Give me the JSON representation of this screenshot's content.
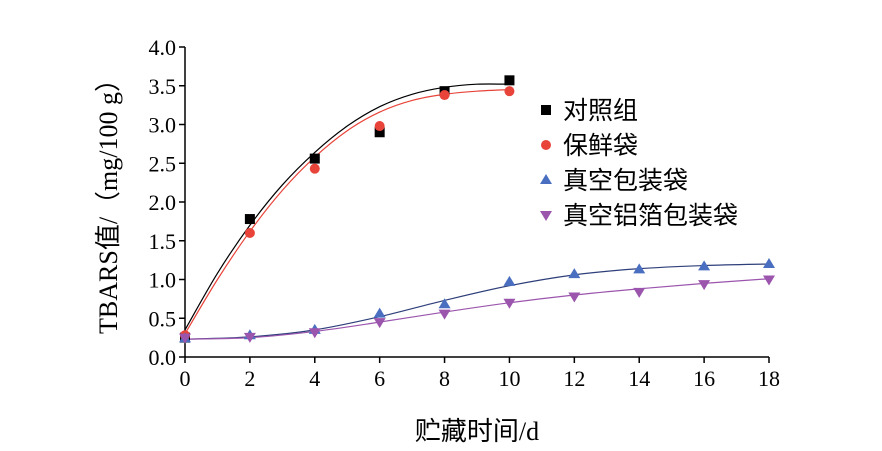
{
  "chart_data": {
    "type": "scatter",
    "xlabel": "贮藏时间/d",
    "ylabel": "TBARS值/（mg/100 g）",
    "xlim": [
      0,
      18
    ],
    "ylim": [
      0,
      4.0
    ],
    "x_ticks": [
      "0",
      "2",
      "4",
      "6",
      "8",
      "10",
      "12",
      "14",
      "16",
      "18"
    ],
    "y_ticks": [
      "0.0",
      "0.5",
      "1.0",
      "1.5",
      "2.0",
      "2.5",
      "3.0",
      "3.5",
      "4.0"
    ],
    "grid": false,
    "legend_position": "top-right",
    "series": [
      {
        "name": "对照组",
        "marker": "square",
        "color": "#000000",
        "fit_color": "#000000",
        "x": [
          0,
          2,
          4,
          6,
          8,
          10
        ],
        "y": [
          0.25,
          1.78,
          2.56,
          2.9,
          3.43,
          3.57
        ],
        "fit": [
          [
            0,
            0.35
          ],
          [
            1,
            1.08
          ],
          [
            2,
            1.7
          ],
          [
            3,
            2.22
          ],
          [
            4,
            2.64
          ],
          [
            5,
            2.98
          ],
          [
            6,
            3.23
          ],
          [
            7,
            3.39
          ],
          [
            8,
            3.48
          ],
          [
            9,
            3.52
          ],
          [
            10,
            3.52
          ]
        ]
      },
      {
        "name": "保鲜袋",
        "marker": "circle",
        "color": "#e8443a",
        "fit_color": "#e8443a",
        "x": [
          0,
          2,
          4,
          6,
          8,
          10
        ],
        "y": [
          0.28,
          1.6,
          2.43,
          2.98,
          3.38,
          3.43
        ],
        "fit": [
          [
            0,
            0.3
          ],
          [
            1,
            1.0
          ],
          [
            2,
            1.62
          ],
          [
            3,
            2.15
          ],
          [
            4,
            2.58
          ],
          [
            5,
            2.92
          ],
          [
            6,
            3.16
          ],
          [
            7,
            3.31
          ],
          [
            8,
            3.39
          ],
          [
            9,
            3.43
          ],
          [
            10,
            3.45
          ]
        ]
      },
      {
        "name": "真空包装袋",
        "marker": "triangle-up",
        "color": "#4a6fc0",
        "fit_color": "#2e3f7a",
        "x": [
          0,
          2,
          4,
          6,
          8,
          10,
          12,
          14,
          16,
          18
        ],
        "y": [
          0.24,
          0.28,
          0.35,
          0.56,
          0.68,
          0.97,
          1.07,
          1.13,
          1.17,
          1.2
        ],
        "fit": [
          [
            0,
            0.23
          ],
          [
            2,
            0.26
          ],
          [
            4,
            0.35
          ],
          [
            6,
            0.52
          ],
          [
            8,
            0.73
          ],
          [
            10,
            0.92
          ],
          [
            12,
            1.06
          ],
          [
            14,
            1.14
          ],
          [
            16,
            1.18
          ],
          [
            18,
            1.2
          ]
        ]
      },
      {
        "name": "真空铝箔包装袋",
        "marker": "triangle-down",
        "color": "#9b55ad",
        "fit_color": "#9b55ad",
        "x": [
          0,
          2,
          4,
          6,
          8,
          10,
          12,
          14,
          16,
          18
        ],
        "y": [
          0.25,
          0.26,
          0.32,
          0.45,
          0.56,
          0.7,
          0.78,
          0.84,
          0.94,
          1.0
        ],
        "fit": [
          [
            0,
            0.23
          ],
          [
            2,
            0.25
          ],
          [
            4,
            0.33
          ],
          [
            6,
            0.45
          ],
          [
            8,
            0.58
          ],
          [
            10,
            0.7
          ],
          [
            12,
            0.8
          ],
          [
            14,
            0.88
          ],
          [
            16,
            0.95
          ],
          [
            18,
            1.01
          ]
        ]
      }
    ]
  }
}
